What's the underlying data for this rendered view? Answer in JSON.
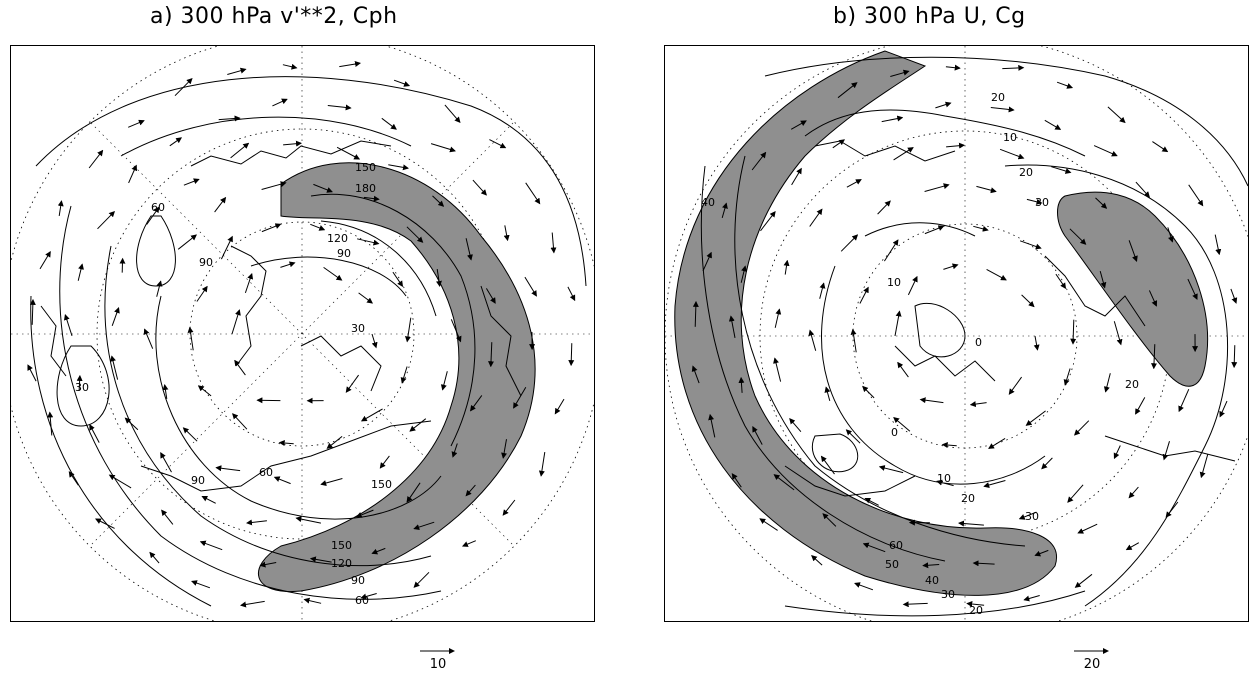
{
  "panels": [
    {
      "title": "a) 300 hPa v'**2, Cph",
      "reference_vector": "10",
      "contour_labels": [
        "150",
        "180",
        "120",
        "90",
        "60",
        "90",
        "30",
        "30",
        "60",
        "90",
        "150",
        "150",
        "120",
        "90",
        "60"
      ],
      "shading": "regions where v'**2 exceeds 150",
      "colors": {
        "shade": "#8f8f8f",
        "line": "#000000"
      }
    },
    {
      "title": "b) 300 hPa U, Cg",
      "reference_vector": "20",
      "contour_labels": [
        "20",
        "10",
        "20",
        "30",
        "40",
        "10",
        "0",
        "20",
        "10",
        "20",
        "30",
        "60",
        "50",
        "40",
        "30",
        "20",
        "0"
      ],
      "shading": "regions where U exceeds 30",
      "colors": {
        "shade": "#8f8f8f",
        "line": "#000000"
      }
    }
  ]
}
